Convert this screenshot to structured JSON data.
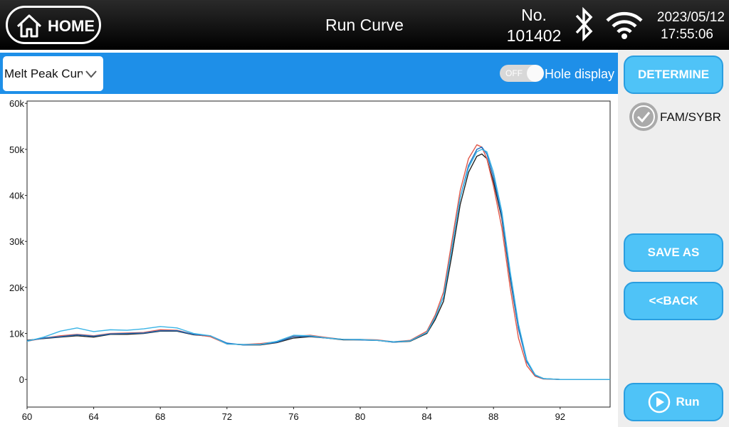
{
  "header": {
    "home": "HOME",
    "title": "Run Curve",
    "number_label": "No.",
    "number": "101402",
    "date": "2023/05/12",
    "time": "17:55:06"
  },
  "toolbar": {
    "dropdown": "Melt Peak Curve",
    "toggle": "OFF",
    "toggle_label": "Hole display"
  },
  "sidebar": {
    "determine": "DETERMINE",
    "channel": "FAM/SYBR",
    "save_as": "SAVE AS",
    "back": "<<BACK",
    "run": "Run"
  },
  "chart_data": {
    "type": "line",
    "x": [
      60,
      61,
      62,
      63,
      64,
      65,
      66,
      67,
      68,
      69,
      70,
      71,
      72,
      73,
      74,
      75,
      76,
      77,
      78,
      79,
      80,
      81,
      82,
      83,
      84,
      84.5,
      85,
      85.5,
      86,
      86.5,
      87,
      87.3,
      87.6,
      88,
      88.5,
      89,
      89.5,
      90,
      90.5,
      91,
      92,
      93,
      94,
      95
    ],
    "series": [
      {
        "color": "#222222",
        "values": [
          8500,
          8900,
          9200,
          9500,
          9200,
          9800,
          9800,
          10000,
          10500,
          10500,
          9700,
          9400,
          7800,
          7500,
          7500,
          8000,
          9000,
          9300,
          9000,
          8600,
          8600,
          8500,
          8100,
          8300,
          10000,
          13000,
          17000,
          27000,
          38000,
          45000,
          48500,
          49000,
          48000,
          43000,
          35000,
          22000,
          11000,
          4000,
          1000,
          200,
          0,
          0,
          0,
          0
        ]
      },
      {
        "color": "#e0584a",
        "values": [
          8300,
          9000,
          9500,
          9800,
          9500,
          10000,
          10100,
          10200,
          10800,
          10700,
          9800,
          9300,
          7700,
          7600,
          7800,
          8200,
          9400,
          9600,
          9100,
          8700,
          8700,
          8600,
          8200,
          8500,
          10500,
          14000,
          19000,
          30000,
          41000,
          48000,
          51000,
          50500,
          48000,
          42000,
          33000,
          20000,
          9000,
          3000,
          700,
          100,
          0,
          0,
          0,
          0
        ]
      },
      {
        "color": "#1e6fc0",
        "values": [
          8400,
          9000,
          9300,
          9700,
          9400,
          9900,
          10000,
          10100,
          10600,
          10600,
          9800,
          9500,
          7900,
          7500,
          7600,
          8100,
          9300,
          9400,
          9000,
          8700,
          8600,
          8500,
          8100,
          8400,
          10200,
          13500,
          18000,
          28500,
          39500,
          46500,
          50000,
          50500,
          49000,
          44000,
          35500,
          22500,
          11000,
          3800,
          900,
          150,
          0,
          0,
          0,
          0
        ]
      },
      {
        "color": "#3ab4e6",
        "values": [
          8300,
          9200,
          10500,
          11200,
          10400,
          10800,
          10700,
          11000,
          11500,
          11200,
          10000,
          9500,
          7700,
          7600,
          7600,
          8300,
          9600,
          9500,
          9000,
          8700,
          8700,
          8500,
          8200,
          8400,
          10200,
          13500,
          18000,
          28500,
          39500,
          46000,
          49500,
          50000,
          49500,
          45000,
          36500,
          23500,
          12000,
          4200,
          1000,
          200,
          0,
          0,
          0,
          0
        ]
      }
    ],
    "xlim": [
      60,
      95
    ],
    "ylim": [
      -6000,
      60500
    ],
    "xticks": [
      60,
      64,
      68,
      72,
      76,
      80,
      84,
      88,
      92
    ],
    "yticks": [
      0,
      {
        "value": 10000,
        "label": "10k"
      },
      {
        "value": 20000,
        "label": "20k"
      },
      {
        "value": 30000,
        "label": "30k"
      },
      {
        "value": 40000,
        "label": "40k"
      },
      {
        "value": 50000,
        "label": "50k"
      },
      {
        "value": 60000,
        "label": "60k"
      }
    ],
    "grid": false
  }
}
